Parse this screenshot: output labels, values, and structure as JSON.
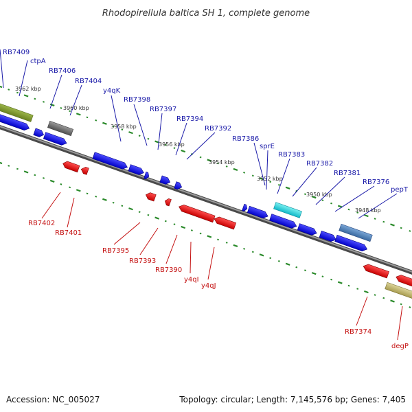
{
  "title": "Rhodopirellula baltica SH 1, complete genome",
  "accession": "Accession: NC_005027",
  "topology": "Topology: circular; Length: 7,145,576 bp; Genes: 7,405",
  "colors": {
    "backbone": "#7a7a7a",
    "tick": "#2a8a2a",
    "label_top": "#1a1aa8",
    "label_bottom": "#c41010"
  },
  "axis_labels": [
    "3962 kbp",
    "3960 kbp",
    "3958 kbp",
    "3956 kbp",
    "3954 kbp",
    "3952 kbp",
    "3950 kbp",
    "3948 kbp"
  ],
  "top_labels": [
    "RB7409",
    "ctpA",
    "RB7406",
    "RB7404",
    "y4qK",
    "RB7398",
    "RB7397",
    "RB7394",
    "RB7392",
    "RB7386",
    "sprE",
    "RB7383",
    "RB7382",
    "RB7381",
    "RB7376",
    "pepT"
  ],
  "bottom_labels": [
    "RB7402",
    "RB7401",
    "RB7395",
    "RB7393",
    "RB7390",
    "y4qI",
    "y4qJ",
    "RB7374",
    "degP"
  ]
}
